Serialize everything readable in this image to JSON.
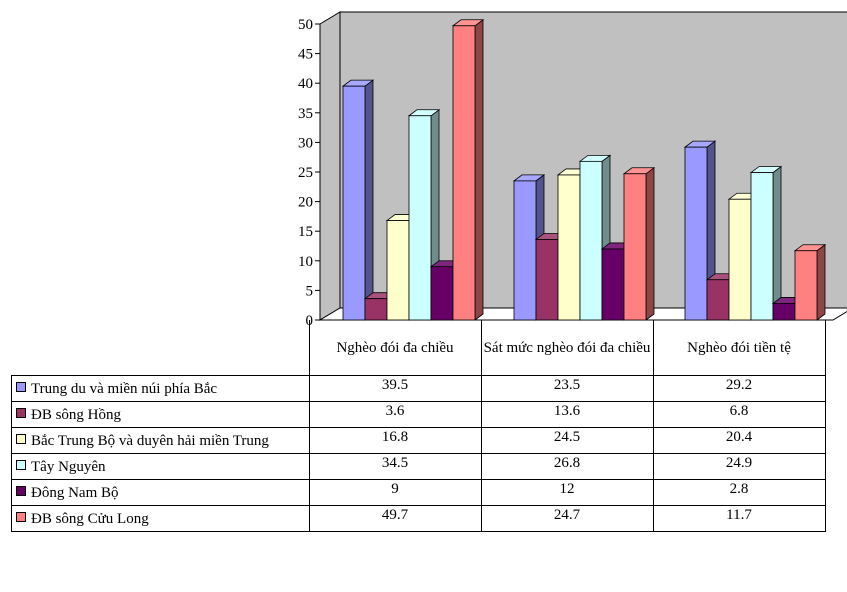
{
  "chart_data": {
    "type": "bar",
    "categories": [
      "Nghèo đói đa chiều",
      "Sát mức nghèo đói đa chiều",
      "Nghèo đói tiền tệ"
    ],
    "series": [
      {
        "name": "Trung du và miền núi phía Bắc",
        "values": [
          39.5,
          23.5,
          29.2
        ],
        "color": "#9999ff"
      },
      {
        "name": "ĐB sông Hồng",
        "values": [
          3.6,
          13.6,
          6.8
        ],
        "color": "#993366"
      },
      {
        "name": "Bắc Trung Bộ và duyên hải miền Trung",
        "values": [
          16.8,
          24.5,
          20.4
        ],
        "color": "#ffffcc"
      },
      {
        "name": "Tây Nguyên",
        "values": [
          34.5,
          26.8,
          24.9
        ],
        "color": "#ccffff"
      },
      {
        "name": "Đông Nam Bộ",
        "values": [
          9,
          12,
          2.8
        ],
        "color": "#660066"
      },
      {
        "name": "ĐB sông Cửu Long",
        "values": [
          49.7,
          24.7,
          11.7
        ],
        "color": "#ff8080"
      }
    ],
    "display_values": [
      [
        "39.5",
        "23.5",
        "29.2"
      ],
      [
        "3.6",
        "13.6",
        "6.8"
      ],
      [
        "16.8",
        "24.5",
        "20.4"
      ],
      [
        "34.5",
        "26.8",
        "24.9"
      ],
      [
        "9",
        "12",
        "2.8"
      ],
      [
        "49.7",
        "24.7",
        "11.7"
      ]
    ],
    "ylim": [
      0,
      50
    ],
    "yticks": [
      "0",
      "5",
      "10",
      "15",
      "20",
      "25",
      "30",
      "35",
      "40",
      "45",
      "50"
    ],
    "grid": false,
    "legend": "data-table-bottom",
    "wall_color": "#c0c0c0"
  }
}
